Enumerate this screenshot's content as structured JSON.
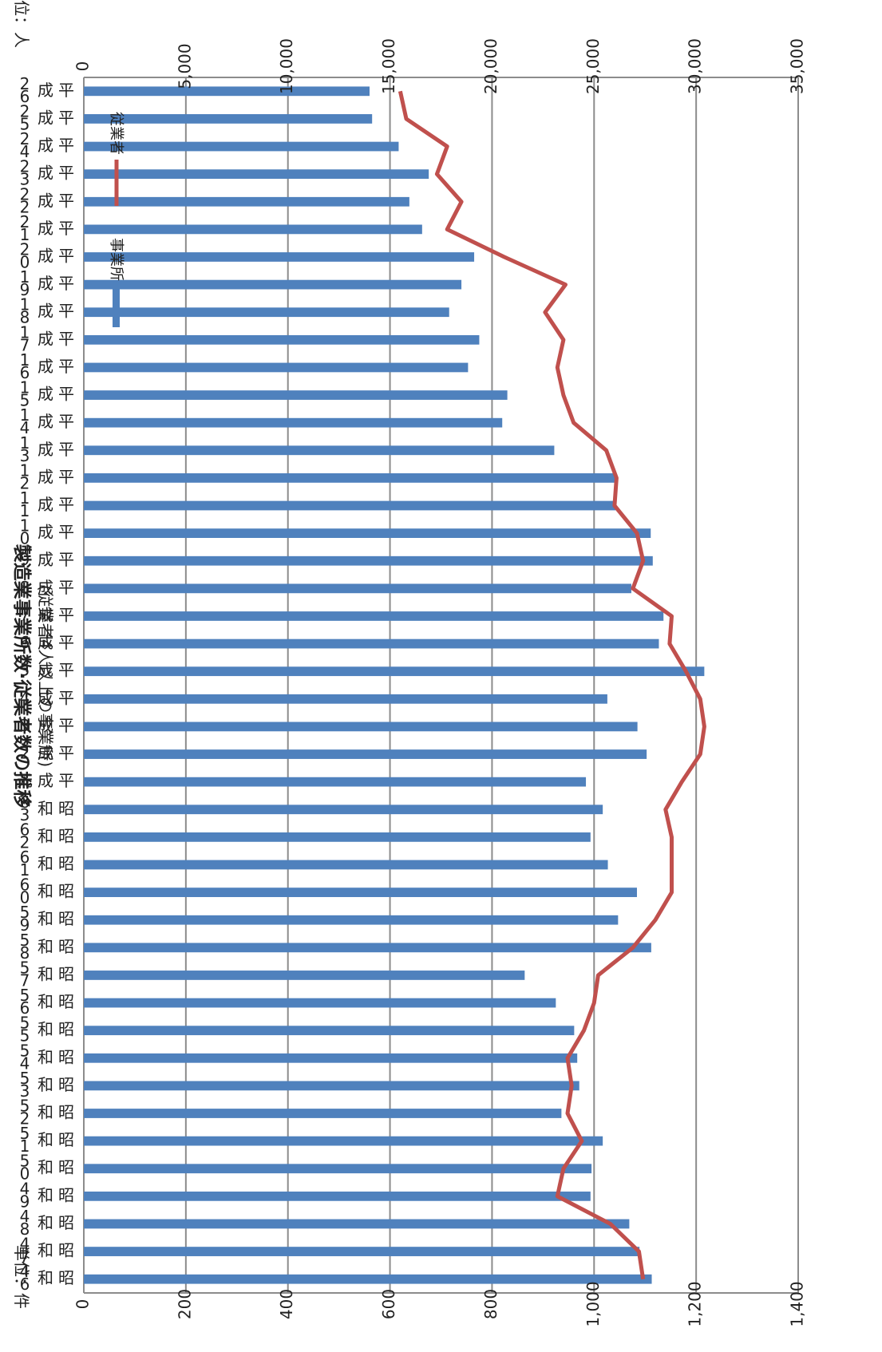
{
  "chart_data": {
    "type": "bar",
    "orientation": "rotated-90-cw",
    "title": "製造業事業所数·従業者数の推移",
    "subtitle": "(従業者4人以上の事業所)",
    "unit_left": "単位：件",
    "unit_right": "単位：人",
    "categories": [
      "昭和46",
      "昭和47",
      "昭和48",
      "昭和49",
      "昭和50",
      "昭和51",
      "昭和52",
      "昭和53",
      "昭和54",
      "昭和55",
      "昭和56",
      "昭和57",
      "昭和58",
      "昭和59",
      "昭和60",
      "昭和61",
      "昭和62",
      "昭和63",
      "平成元",
      "平成2",
      "平成3",
      "平成4",
      "平成5",
      "平成6",
      "平成7",
      "平成8",
      "平成9",
      "平成10",
      "平成11",
      "平成12",
      "平成13",
      "平成14",
      "平成15",
      "平成16",
      "平成17",
      "平成18",
      "平成19",
      "平成20",
      "平成21",
      "平成22",
      "平成23",
      "平成24",
      "平成25",
      "平成26"
    ],
    "series": [
      {
        "name": "事業所",
        "axis": "left",
        "color": "#4f81bd",
        "values": [
          1113,
          1089,
          1069,
          993,
          995,
          1017,
          936,
          971,
          967,
          961,
          925,
          864,
          1112,
          1047,
          1084,
          1027,
          993,
          1017,
          984,
          1103,
          1085,
          1026,
          1216,
          1127,
          1136,
          1073,
          1115,
          1111,
          1042,
          1042,
          922,
          820,
          830,
          753,
          775,
          716,
          740,
          765,
          663,
          638,
          676,
          617,
          565,
          560
        ]
      },
      {
        "name": "従業者",
        "axis": "right",
        "color": "#c0504d",
        "values": [
          27400,
          27200,
          25800,
          23200,
          23500,
          24400,
          23700,
          23900,
          23700,
          24500,
          25000,
          25200,
          26900,
          28000,
          28800,
          28800,
          28800,
          28500,
          29300,
          30200,
          30400,
          30200,
          29500,
          28700,
          28800,
          26900,
          27400,
          27100,
          26000,
          26100,
          25600,
          24000,
          23500,
          23200,
          23500,
          22600,
          23600,
          20600,
          17800,
          18500,
          17300,
          17800,
          15800,
          15500
        ]
      }
    ],
    "left_axis": {
      "min": 0,
      "max": 1400,
      "ticks": [
        "0",
        "200",
        "400",
        "600",
        "800",
        "1,000",
        "1,200",
        "1,400"
      ]
    },
    "right_axis": {
      "min": 0,
      "max": 35000,
      "ticks": [
        "0",
        "5,000",
        "10,000",
        "15,000",
        "20,000",
        "25,000",
        "30,000",
        "35,000"
      ]
    },
    "grid": true,
    "legend": [
      "事業所",
      "従業者"
    ]
  }
}
